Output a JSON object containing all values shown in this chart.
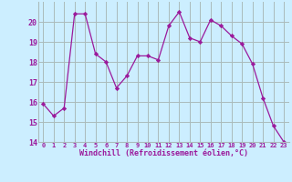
{
  "x": [
    0,
    1,
    2,
    3,
    4,
    5,
    6,
    7,
    8,
    9,
    10,
    11,
    12,
    13,
    14,
    15,
    16,
    17,
    18,
    19,
    20,
    21,
    22,
    23
  ],
  "y": [
    15.9,
    15.3,
    15.7,
    20.4,
    20.4,
    18.4,
    18.0,
    16.7,
    17.3,
    18.3,
    18.3,
    18.1,
    19.8,
    20.5,
    19.2,
    19.0,
    20.1,
    19.8,
    19.3,
    18.9,
    17.9,
    16.2,
    14.8,
    14.0
  ],
  "line_color": "#9b1a9b",
  "marker": "D",
  "marker_size": 2.2,
  "bg_color": "#cceeff",
  "grid_color": "#aabbbb",
  "xlabel": "Windchill (Refroidissement éolien,°C)",
  "xlabel_color": "#9b1a9b",
  "tick_color": "#9b1a9b",
  "ylim": [
    14,
    21
  ],
  "yticks": [
    14,
    15,
    16,
    17,
    18,
    19,
    20
  ],
  "xtick_labels": [
    "0",
    "1",
    "2",
    "3",
    "4",
    "5",
    "6",
    "7",
    "8",
    "9",
    "10",
    "11",
    "12",
    "13",
    "14",
    "15",
    "16",
    "17",
    "18",
    "19",
    "20",
    "21",
    "22",
    "23"
  ]
}
